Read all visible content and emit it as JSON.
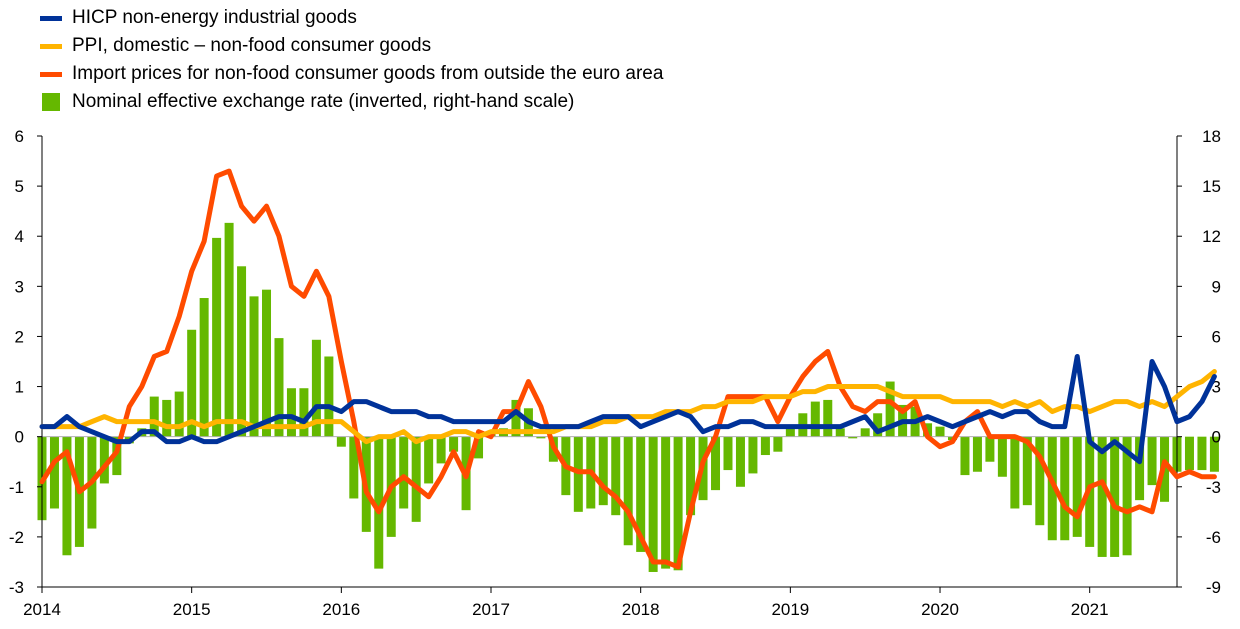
{
  "legend": [
    {
      "name": "HICP non-energy industrial goods",
      "color": "#003299",
      "kind": "line"
    },
    {
      "name": "PPI, domestic – non-food consumer goods",
      "color": "#FFB400",
      "kind": "line"
    },
    {
      "name": "Import prices for non-food consumer goods from outside the euro area",
      "color": "#FF4B00",
      "kind": "line"
    },
    {
      "name": "Nominal effective exchange rate (inverted, right-hand scale)",
      "color": "#65B800",
      "kind": "bar"
    }
  ],
  "chart_data": {
    "type": "line",
    "x_start": "2014-01",
    "x_end": "2021-07",
    "x_ticks": [
      "2014",
      "2015",
      "2016",
      "2017",
      "2018",
      "2019",
      "2020",
      "2021"
    ],
    "y_left": {
      "min": -3,
      "max": 6,
      "ticks": [
        "-3",
        "-2",
        "-1",
        "0",
        "1",
        "2",
        "3",
        "4",
        "5",
        "6"
      ]
    },
    "y_right": {
      "min": -9,
      "max": 18,
      "ticks": [
        "-9",
        "-6",
        "-3",
        "0",
        "3",
        "6",
        "9",
        "12",
        "15",
        "18"
      ]
    },
    "series": [
      {
        "name": "HICP non-energy industrial goods",
        "color": "#003299",
        "axis": "left",
        "values": [
          0.2,
          0.2,
          0.4,
          0.2,
          0.1,
          0.0,
          -0.1,
          -0.1,
          0.1,
          0.1,
          -0.1,
          -0.1,
          0.0,
          -0.1,
          -0.1,
          0.0,
          0.1,
          0.2,
          0.3,
          0.4,
          0.4,
          0.3,
          0.6,
          0.6,
          0.5,
          0.7,
          0.7,
          0.6,
          0.5,
          0.5,
          0.5,
          0.4,
          0.4,
          0.3,
          0.3,
          0.3,
          0.3,
          0.3,
          0.5,
          0.3,
          0.2,
          0.2,
          0.2,
          0.2,
          0.3,
          0.4,
          0.4,
          0.4,
          0.2,
          0.3,
          0.4,
          0.5,
          0.4,
          0.1,
          0.2,
          0.2,
          0.3,
          0.3,
          0.2,
          0.2,
          0.2,
          0.2,
          0.2,
          0.2,
          0.2,
          0.3,
          0.4,
          0.1,
          0.2,
          0.3,
          0.3,
          0.4,
          0.3,
          0.2,
          0.3,
          0.4,
          0.5,
          0.4,
          0.5,
          0.5,
          0.3,
          0.2,
          0.2,
          1.6,
          -0.1,
          -0.3,
          -0.1,
          -0.3,
          -0.5,
          1.5,
          1.0,
          0.3,
          0.4,
          0.7,
          1.2
        ]
      },
      {
        "name": "PPI, domestic – non-food consumer goods",
        "color": "#FFB400",
        "axis": "left",
        "values": [
          0.2,
          0.2,
          0.2,
          0.2,
          0.3,
          0.4,
          0.3,
          0.3,
          0.3,
          0.3,
          0.2,
          0.2,
          0.3,
          0.2,
          0.3,
          0.3,
          0.3,
          0.2,
          0.2,
          0.2,
          0.2,
          0.2,
          0.3,
          0.3,
          0.3,
          0.1,
          -0.1,
          0.0,
          0.0,
          0.1,
          -0.1,
          0.0,
          0.0,
          0.1,
          0.1,
          0.0,
          0.1,
          0.1,
          0.1,
          0.1,
          0.1,
          0.1,
          0.2,
          0.2,
          0.2,
          0.3,
          0.3,
          0.4,
          0.4,
          0.4,
          0.5,
          0.5,
          0.5,
          0.6,
          0.6,
          0.7,
          0.7,
          0.7,
          0.8,
          0.8,
          0.8,
          0.9,
          0.9,
          1.0,
          1.0,
          1.0,
          1.0,
          1.0,
          0.9,
          0.8,
          0.8,
          0.8,
          0.8,
          0.7,
          0.7,
          0.7,
          0.7,
          0.6,
          0.7,
          0.6,
          0.7,
          0.5,
          0.6,
          0.6,
          0.5,
          0.6,
          0.7,
          0.7,
          0.6,
          0.7,
          0.6,
          0.8,
          1.0,
          1.1,
          1.3
        ]
      },
      {
        "name": "Import prices for non-food consumer goods from outside the euro area",
        "color": "#FF4B00",
        "axis": "left",
        "values": [
          -0.9,
          -0.5,
          -0.3,
          -1.1,
          -0.9,
          -0.6,
          -0.3,
          0.6,
          1.0,
          1.6,
          1.7,
          2.4,
          3.3,
          3.9,
          5.2,
          5.3,
          4.6,
          4.3,
          4.6,
          4.0,
          3.0,
          2.8,
          3.3,
          2.8,
          1.5,
          0.3,
          -1.1,
          -1.5,
          -1.0,
          -0.8,
          -1.0,
          -1.2,
          -0.8,
          -0.3,
          -0.8,
          0.1,
          0.0,
          0.5,
          0.5,
          1.1,
          0.6,
          -0.2,
          -0.6,
          -0.7,
          -0.7,
          -1.0,
          -1.2,
          -1.5,
          -2.0,
          -2.5,
          -2.5,
          -2.6,
          -1.5,
          -0.5,
          0.0,
          0.8,
          0.8,
          0.8,
          0.8,
          0.3,
          0.8,
          1.2,
          1.5,
          1.7,
          1.0,
          0.6,
          0.5,
          0.7,
          0.7,
          0.5,
          0.7,
          0.0,
          -0.2,
          -0.1,
          0.3,
          0.5,
          0.0,
          0.0,
          0.0,
          -0.1,
          -0.4,
          -0.9,
          -1.4,
          -1.6,
          -1.0,
          -0.9,
          -1.4,
          -1.5,
          -1.4,
          -1.5,
          -0.5,
          -0.8,
          -0.7,
          -0.8,
          -0.8
        ]
      },
      {
        "name": "Nominal effective exchange rate (inverted, right-hand scale)",
        "color": "#65B800",
        "axis": "right",
        "kind": "bar",
        "values": [
          -5.0,
          -4.3,
          -7.1,
          -6.6,
          -5.5,
          -2.8,
          -2.3,
          -0.4,
          0.5,
          2.4,
          2.2,
          2.7,
          6.4,
          8.3,
          11.9,
          12.8,
          10.2,
          8.4,
          8.8,
          5.9,
          2.9,
          2.9,
          5.8,
          4.8,
          -0.6,
          -3.7,
          -5.7,
          -7.9,
          -6.0,
          -4.3,
          -5.1,
          -2.8,
          -1.6,
          -0.9,
          -4.4,
          -1.3,
          0.3,
          0.5,
          2.2,
          1.7,
          -0.1,
          -1.5,
          -3.5,
          -4.5,
          -4.3,
          -4.1,
          -4.7,
          -6.5,
          -6.9,
          -8.1,
          -7.9,
          -8.0,
          -4.7,
          -3.8,
          -3.2,
          -2.0,
          -3.0,
          -2.2,
          -1.1,
          -0.9,
          0.5,
          1.4,
          2.1,
          2.2,
          0.5,
          -0.1,
          0.5,
          1.4,
          3.3,
          1.9,
          1.8,
          0.8,
          0.6,
          -0.2,
          -2.3,
          -2.1,
          -1.5,
          -2.4,
          -4.3,
          -4.1,
          -5.3,
          -6.2,
          -6.2,
          -6.0,
          -6.6,
          -7.2,
          -7.2,
          -7.1,
          -3.8,
          -2.9,
          -3.9,
          -2.1,
          -2.0,
          -2.0,
          -2.1
        ]
      }
    ],
    "grid": false,
    "legend_position": "top-left"
  }
}
